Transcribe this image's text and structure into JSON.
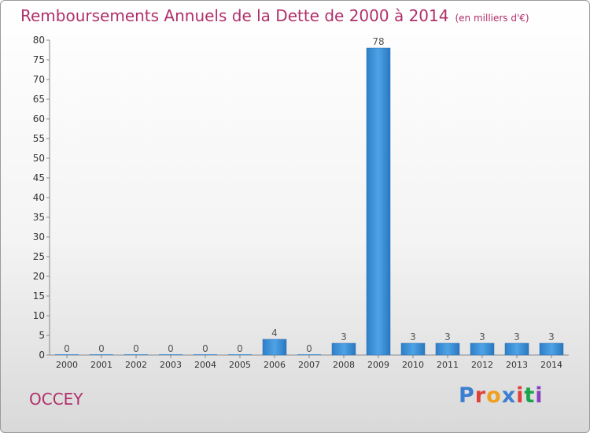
{
  "title": "Remboursements Annuels de la Dette de 2000 à 2014",
  "subtitle": "(en milliers d'€)",
  "commune": "OCCEY",
  "logo": {
    "text": "Proxiti",
    "colors": [
      "#3b7fd1",
      "#e0403a",
      "#f0a020",
      "#3b7fd1",
      "#e0403a",
      "#1aa34a",
      "#8a3fc0"
    ]
  },
  "chart_data": {
    "type": "bar",
    "categories": [
      "2000",
      "2001",
      "2002",
      "2003",
      "2004",
      "2005",
      "2006",
      "2007",
      "2008",
      "2009",
      "2010",
      "2011",
      "2012",
      "2013",
      "2014"
    ],
    "values": [
      0,
      0,
      0,
      0,
      0,
      0,
      4,
      0,
      3,
      78,
      3,
      3,
      3,
      3,
      3
    ],
    "data_labels": [
      "0",
      "0",
      "0",
      "0",
      "0",
      "0",
      "4",
      "0",
      "3",
      "78",
      "3",
      "3",
      "3",
      "3",
      "3"
    ],
    "ylim": [
      0,
      80
    ],
    "yticks": [
      0,
      5,
      10,
      15,
      20,
      25,
      30,
      35,
      40,
      45,
      50,
      55,
      60,
      65,
      70,
      75,
      80
    ],
    "grid": false,
    "bar_color": "#3a8fd9",
    "text_color": "#b0306a"
  }
}
